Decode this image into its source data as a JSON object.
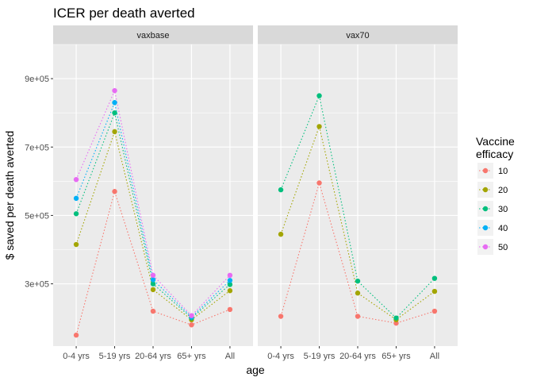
{
  "chart_data": {
    "type": "line",
    "title": "ICER per death averted",
    "xlabel": "age",
    "ylabel": "$ saved per death averted",
    "categories": [
      "0-4 yrs",
      "5-19 yrs",
      "20-64 yrs",
      "65+ yrs",
      "All"
    ],
    "y_ticks": [
      {
        "value": 300000,
        "label": "3e+05"
      },
      {
        "value": 500000,
        "label": "5e+05"
      },
      {
        "value": 700000,
        "label": "7e+05"
      },
      {
        "value": 900000,
        "label": "9e+05"
      }
    ],
    "ylim": [
      118000,
      1000000
    ],
    "grid": true,
    "line_style": "dotted",
    "legend": {
      "title_lines": [
        "Vaccine",
        "efficacy"
      ],
      "position": "right",
      "entries": [
        {
          "label": "10",
          "color": "#F8766D"
        },
        {
          "label": "20",
          "color": "#A3A500"
        },
        {
          "label": "30",
          "color": "#00BF7D"
        },
        {
          "label": "40",
          "color": "#00B0F6"
        },
        {
          "label": "50",
          "color": "#E76BF3"
        }
      ]
    },
    "panels": [
      {
        "label": "vaxbase",
        "series": [
          {
            "name": "10",
            "values": [
              150000,
              570000,
              220000,
              180000,
              225000
            ]
          },
          {
            "name": "20",
            "values": [
              415000,
              745000,
              283000,
              195000,
              280000
            ]
          },
          {
            "name": "30",
            "values": [
              505000,
              800000,
              300000,
              200000,
              298000
            ]
          },
          {
            "name": "40",
            "values": [
              550000,
              830000,
              312000,
              203000,
              310000
            ]
          },
          {
            "name": "50",
            "values": [
              605000,
              865000,
              325000,
              207000,
              325000
            ]
          }
        ]
      },
      {
        "label": "vax70",
        "series": [
          {
            "name": "10",
            "values": [
              205000,
              595000,
              205000,
              185000,
              220000
            ]
          },
          {
            "name": "20",
            "values": [
              445000,
              760000,
              273000,
              195000,
              278000
            ]
          },
          {
            "name": "30",
            "values": [
              575000,
              850000,
              308000,
              200000,
              316000
            ]
          }
        ]
      }
    ]
  }
}
